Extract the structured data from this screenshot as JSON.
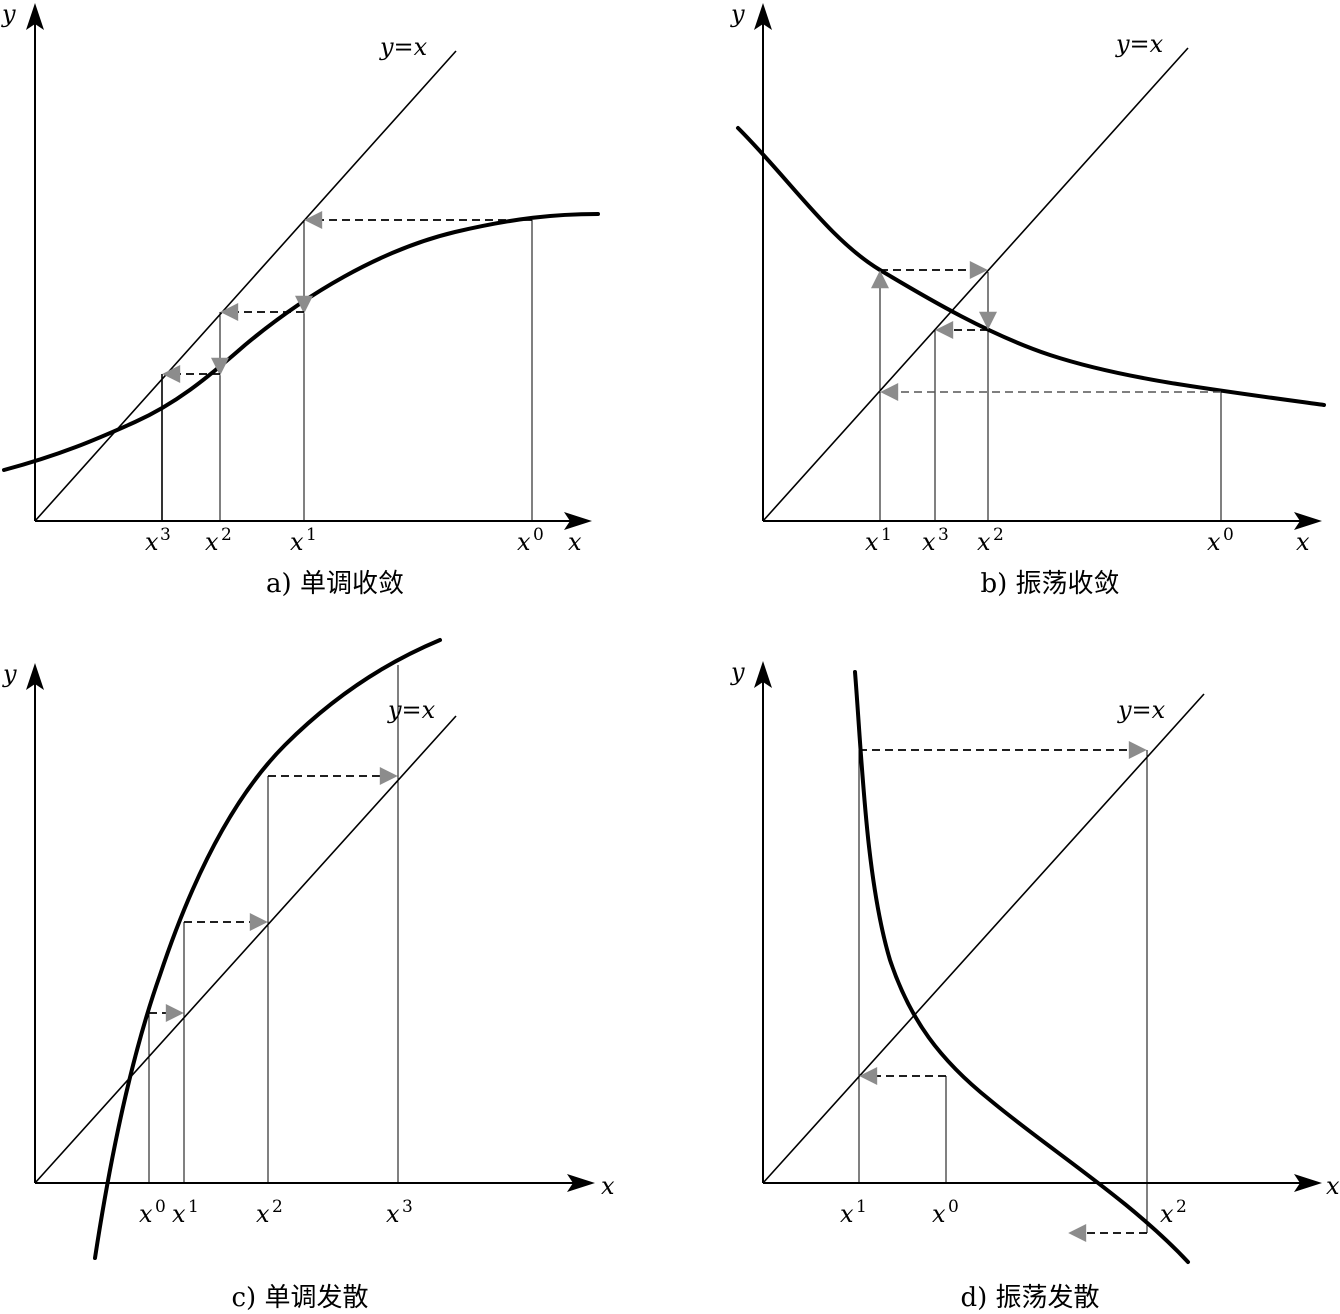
{
  "panels": [
    {
      "id": "a",
      "caption": "a) 单调收敛",
      "x_axis_label": "x",
      "y_axis_label": "y",
      "diagonal_label": "y=x",
      "ticks": [
        {
          "base": "x",
          "sup": "3"
        },
        {
          "base": "x",
          "sup": "2"
        },
        {
          "base": "x",
          "sup": "1"
        },
        {
          "base": "x",
          "sup": "0"
        }
      ]
    },
    {
      "id": "b",
      "caption": "b) 振荡收敛",
      "x_axis_label": "x",
      "y_axis_label": "y",
      "diagonal_label": "y=x",
      "ticks": [
        {
          "base": "x",
          "sup": "1"
        },
        {
          "base": "x",
          "sup": "3"
        },
        {
          "base": "x",
          "sup": "2"
        },
        {
          "base": "x",
          "sup": "0"
        }
      ]
    },
    {
      "id": "c",
      "caption": "c) 单调发散",
      "x_axis_label": "x",
      "y_axis_label": "y",
      "diagonal_label": "y=x",
      "ticks": [
        {
          "base": "x",
          "sup": "0"
        },
        {
          "base": "x",
          "sup": "1"
        },
        {
          "base": "x",
          "sup": "2"
        },
        {
          "base": "x",
          "sup": "3"
        }
      ]
    },
    {
      "id": "d",
      "caption": "d) 振荡发散",
      "x_axis_label": "x",
      "y_axis_label": "y",
      "diagonal_label": "y=x",
      "ticks": [
        {
          "base": "x",
          "sup": "1"
        },
        {
          "base": "x",
          "sup": "0"
        },
        {
          "base": "x",
          "sup": "2"
        }
      ]
    }
  ],
  "colors": {
    "line": "#000000",
    "iteration_arrow": "#8c8c8c"
  }
}
